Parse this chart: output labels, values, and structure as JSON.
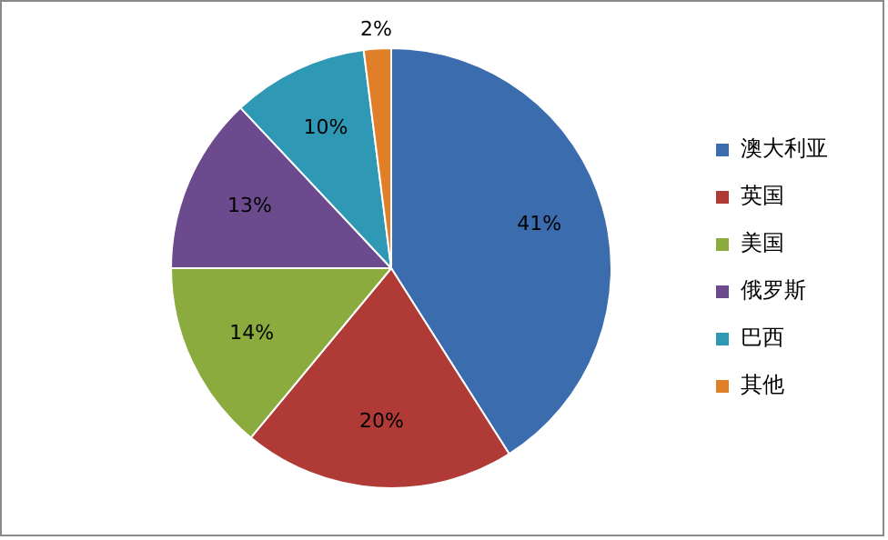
{
  "chart_data": {
    "type": "pie",
    "categories": [
      "澳大利亚",
      "英国",
      "美国",
      "俄罗斯",
      "巴西",
      "其他"
    ],
    "values": [
      41,
      20,
      14,
      13,
      10,
      2
    ],
    "colors": [
      "#3a6cae",
      "#b03a36",
      "#8bab3e",
      "#6b4b8d",
      "#2f98b5",
      "#e07f28"
    ],
    "value_labels": [
      "41%",
      "20%",
      "14%",
      "13%",
      "10%",
      "2%"
    ],
    "legend": "right"
  }
}
